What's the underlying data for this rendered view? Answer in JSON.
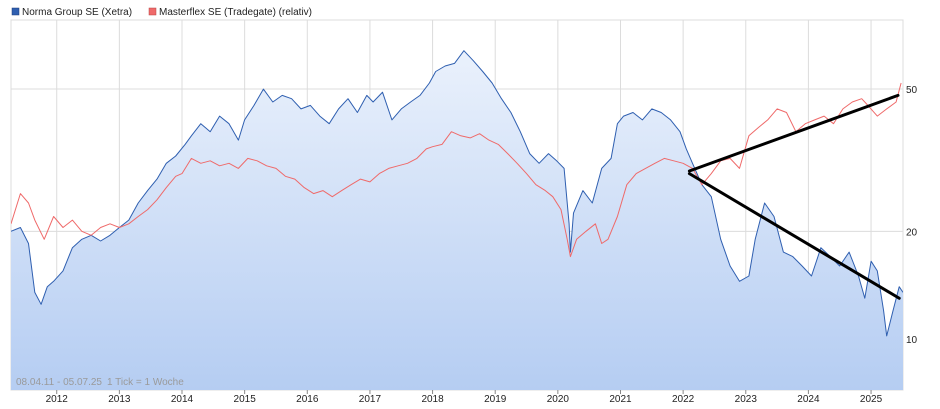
{
  "colors": {
    "norma_line": "#2f5fb0",
    "norma_fill_top": "#eaf1fc",
    "norma_fill_bottom": "#b5cdf2",
    "masterflex_line": "#ef6a6a",
    "trend_line": "#000000",
    "grid": "#dcdcdc"
  },
  "range_label": "08.04.11 - 05.07.25",
  "tick_note": "1 Tick = 1 Woche",
  "chart_data": {
    "type": "line",
    "y_scale": "log",
    "ylim": [
      7.2,
      78
    ],
    "xlim": [
      2011.27,
      2025.51
    ],
    "grid": true,
    "legend_position": "top-left",
    "x_ticks": [
      {
        "label": "2012",
        "value": 2012.0
      },
      {
        "label": "2013",
        "value": 2013.0
      },
      {
        "label": "2014",
        "value": 2014.0
      },
      {
        "label": "2015",
        "value": 2015.0
      },
      {
        "label": "2016",
        "value": 2016.0
      },
      {
        "label": "2017",
        "value": 2017.0
      },
      {
        "label": "2018",
        "value": 2018.0
      },
      {
        "label": "2019",
        "value": 2019.0
      },
      {
        "label": "2020",
        "value": 2020.0
      },
      {
        "label": "2021",
        "value": 2021.0
      },
      {
        "label": "2022",
        "value": 2022.0
      },
      {
        "label": "2023",
        "value": 2023.0
      },
      {
        "label": "2024",
        "value": 2024.0
      },
      {
        "label": "2025",
        "value": 2025.0
      }
    ],
    "y_ticks": [
      {
        "label": "10",
        "value": 10
      },
      {
        "label": "20",
        "value": 20
      },
      {
        "label": "50",
        "value": 50
      }
    ],
    "series": [
      {
        "name": "Norma Group SE (Xetra)",
        "color": "#2f5fb0",
        "area": true,
        "x": [
          2011.27,
          2011.42,
          2011.55,
          2011.65,
          2011.75,
          2011.85,
          2011.95,
          2012.1,
          2012.25,
          2012.4,
          2012.55,
          2012.7,
          2012.85,
          2013.0,
          2013.15,
          2013.3,
          2013.45,
          2013.6,
          2013.75,
          2013.9,
          2014.05,
          2014.15,
          2014.3,
          2014.45,
          2014.6,
          2014.75,
          2014.9,
          2015.0,
          2015.15,
          2015.3,
          2015.45,
          2015.6,
          2015.75,
          2015.9,
          2016.05,
          2016.2,
          2016.35,
          2016.5,
          2016.65,
          2016.8,
          2016.95,
          2017.05,
          2017.2,
          2017.35,
          2017.5,
          2017.65,
          2017.8,
          2017.95,
          2018.05,
          2018.2,
          2018.35,
          2018.5,
          2018.65,
          2018.8,
          2018.95,
          2019.1,
          2019.25,
          2019.4,
          2019.55,
          2019.7,
          2019.85,
          2019.98,
          2020.1,
          2020.18,
          2020.2,
          2020.25,
          2020.4,
          2020.55,
          2020.7,
          2020.85,
          2020.95,
          2021.05,
          2021.2,
          2021.35,
          2021.5,
          2021.65,
          2021.8,
          2021.95,
          2022.05,
          2022.15,
          2022.3,
          2022.45,
          2022.6,
          2022.75,
          2022.9,
          2023.05,
          2023.15,
          2023.3,
          2023.45,
          2023.6,
          2023.75,
          2023.9,
          2024.05,
          2024.2,
          2024.35,
          2024.5,
          2024.65,
          2024.8,
          2024.9,
          2025.0,
          2025.1,
          2025.2,
          2025.25,
          2025.35,
          2025.45,
          2025.51
        ],
        "values": [
          20.0,
          20.5,
          18.5,
          13.5,
          12.5,
          14.0,
          14.5,
          15.5,
          18.0,
          19.0,
          19.5,
          18.8,
          19.5,
          20.5,
          21.5,
          24.0,
          26.0,
          28.0,
          31.0,
          32.5,
          35.0,
          37.0,
          40.0,
          38.0,
          42.0,
          40.0,
          36.0,
          41.0,
          45.0,
          50.0,
          46.0,
          48.0,
          47.0,
          44.0,
          45.0,
          42.0,
          40.0,
          44.0,
          47.0,
          43.0,
          48.0,
          46.0,
          49.0,
          41.0,
          44.0,
          46.0,
          48.0,
          52.0,
          56.0,
          58.0,
          59.0,
          64.0,
          60.0,
          56.0,
          52.0,
          47.0,
          43.0,
          38.0,
          33.0,
          31.0,
          33.0,
          31.5,
          30.0,
          21.0,
          17.5,
          22.5,
          26.0,
          24.0,
          30.0,
          32.0,
          40.0,
          42.0,
          43.0,
          41.0,
          44.0,
          43.0,
          41.0,
          38.0,
          34.0,
          31.0,
          27.0,
          25.0,
          19.0,
          16.0,
          14.5,
          15.0,
          19.0,
          24.0,
          22.0,
          17.5,
          17.0,
          16.0,
          15.0,
          18.0,
          17.0,
          16.0,
          17.5,
          15.0,
          13.0,
          16.5,
          15.5,
          12.0,
          10.2,
          12.0,
          14.0,
          13.5
        ]
      },
      {
        "name": "Masterflex SE (Tradegate) (relativ)",
        "color": "#ef6a6a",
        "area": false,
        "x": [
          2011.27,
          2011.42,
          2011.55,
          2011.65,
          2011.8,
          2011.95,
          2012.1,
          2012.25,
          2012.4,
          2012.55,
          2012.7,
          2012.85,
          2013.0,
          2013.15,
          2013.3,
          2013.45,
          2013.6,
          2013.75,
          2013.9,
          2014.0,
          2014.15,
          2014.3,
          2014.45,
          2014.6,
          2014.75,
          2014.9,
          2015.05,
          2015.2,
          2015.35,
          2015.5,
          2015.65,
          2015.8,
          2015.95,
          2016.1,
          2016.25,
          2016.4,
          2016.55,
          2016.7,
          2016.85,
          2017.0,
          2017.15,
          2017.3,
          2017.45,
          2017.6,
          2017.75,
          2017.9,
          2018.0,
          2018.15,
          2018.3,
          2018.45,
          2018.6,
          2018.75,
          2018.9,
          2019.05,
          2019.2,
          2019.35,
          2019.5,
          2019.65,
          2019.8,
          2019.92,
          2020.05,
          2020.15,
          2020.2,
          2020.3,
          2020.45,
          2020.6,
          2020.7,
          2020.8,
          2020.95,
          2021.1,
          2021.25,
          2021.4,
          2021.55,
          2021.7,
          2021.85,
          2022.0,
          2022.15,
          2022.3,
          2022.45,
          2022.6,
          2022.75,
          2022.9,
          2023.05,
          2023.2,
          2023.35,
          2023.5,
          2023.65,
          2023.8,
          2023.95,
          2024.1,
          2024.25,
          2024.4,
          2024.55,
          2024.7,
          2024.85,
          2024.95,
          2025.1,
          2025.25,
          2025.4,
          2025.48
        ],
        "values": [
          21.0,
          25.5,
          24.0,
          21.5,
          19.0,
          22.0,
          20.5,
          21.5,
          20.0,
          19.5,
          20.5,
          21.0,
          20.5,
          21.0,
          22.0,
          23.0,
          24.5,
          26.5,
          28.5,
          29.0,
          32.0,
          31.0,
          31.5,
          30.5,
          31.0,
          30.0,
          32.0,
          31.5,
          30.5,
          30.0,
          28.5,
          28.0,
          26.5,
          25.5,
          26.0,
          25.0,
          26.0,
          27.0,
          28.0,
          27.5,
          29.0,
          30.0,
          30.5,
          31.0,
          32.0,
          34.0,
          34.5,
          35.0,
          38.0,
          37.0,
          36.5,
          37.5,
          36.0,
          35.0,
          33.0,
          31.0,
          29.0,
          27.0,
          26.0,
          25.0,
          23.0,
          19.0,
          17.0,
          19.0,
          20.0,
          21.0,
          18.5,
          19.0,
          22.0,
          27.0,
          29.0,
          30.0,
          31.0,
          32.0,
          31.5,
          31.0,
          30.0,
          27.0,
          29.0,
          31.5,
          32.0,
          30.0,
          37.0,
          39.0,
          41.0,
          44.0,
          43.0,
          38.0,
          40.0,
          41.0,
          42.0,
          40.0,
          44.0,
          46.0,
          47.0,
          45.0,
          42.0,
          44.0,
          46.0,
          52.0
        ]
      }
    ],
    "trendlines": [
      {
        "x": [
          2022.1,
          2025.43
        ],
        "values": [
          29.5,
          48.0
        ]
      },
      {
        "x": [
          2022.1,
          2025.45
        ],
        "values": [
          29.0,
          13.0
        ]
      }
    ]
  }
}
